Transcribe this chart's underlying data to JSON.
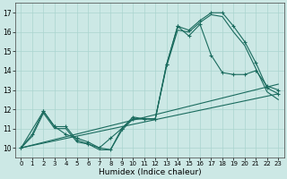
{
  "xlabel": "Humidex (Indice chaleur)",
  "bg_color": "#cce8e5",
  "line_color": "#1a6b5e",
  "grid_color": "#aad4cf",
  "xlim": [
    -0.5,
    23.5
  ],
  "ylim": [
    9.5,
    17.5
  ],
  "yticks": [
    10,
    11,
    12,
    13,
    14,
    15,
    16,
    17
  ],
  "xticks": [
    0,
    1,
    2,
    3,
    4,
    5,
    6,
    7,
    8,
    9,
    10,
    11,
    12,
    13,
    14,
    15,
    16,
    17,
    18,
    19,
    20,
    21,
    22,
    23
  ],
  "series": [
    {
      "x": [
        0,
        1,
        2,
        3,
        4,
        5,
        6,
        7,
        8,
        9,
        10,
        11,
        12,
        13,
        14,
        15,
        16,
        17,
        18,
        19,
        20,
        21,
        22,
        23
      ],
      "y": [
        10.0,
        10.7,
        11.9,
        11.1,
        11.1,
        10.4,
        10.2,
        10.0,
        9.9,
        11.0,
        11.6,
        11.5,
        11.5,
        14.3,
        16.3,
        16.1,
        16.6,
        17.0,
        17.0,
        16.3,
        15.5,
        14.4,
        13.1,
        12.8
      ],
      "marker": "+"
    },
    {
      "x": [
        0,
        1,
        2,
        3,
        4,
        5,
        6,
        7,
        8,
        9,
        10,
        11,
        12,
        13,
        14,
        15,
        16,
        17,
        18,
        19,
        20,
        21,
        22,
        23
      ],
      "y": [
        10.0,
        10.6,
        11.8,
        11.0,
        11.0,
        10.3,
        10.2,
        9.9,
        9.9,
        10.9,
        11.5,
        11.5,
        11.5,
        14.2,
        16.1,
        16.0,
        16.5,
        16.9,
        16.8,
        16.0,
        15.3,
        14.1,
        12.9,
        12.5
      ],
      "marker": null
    },
    {
      "x": [
        0,
        2,
        3,
        4,
        5,
        6,
        7,
        8,
        9,
        10,
        11,
        12,
        13,
        14,
        15,
        16,
        17,
        18,
        19,
        20,
        21,
        22,
        23
      ],
      "y": [
        10.0,
        11.9,
        11.1,
        10.7,
        10.5,
        10.3,
        10.0,
        10.5,
        11.0,
        11.5,
        11.5,
        11.5,
        14.3,
        16.3,
        15.8,
        16.4,
        14.8,
        13.9,
        13.8,
        13.8,
        14.0,
        13.2,
        13.0
      ],
      "marker": "+"
    },
    {
      "x": [
        0,
        23
      ],
      "y": [
        10.0,
        12.8
      ],
      "marker": null
    },
    {
      "x": [
        0,
        23
      ],
      "y": [
        10.0,
        13.3
      ],
      "marker": null
    }
  ]
}
